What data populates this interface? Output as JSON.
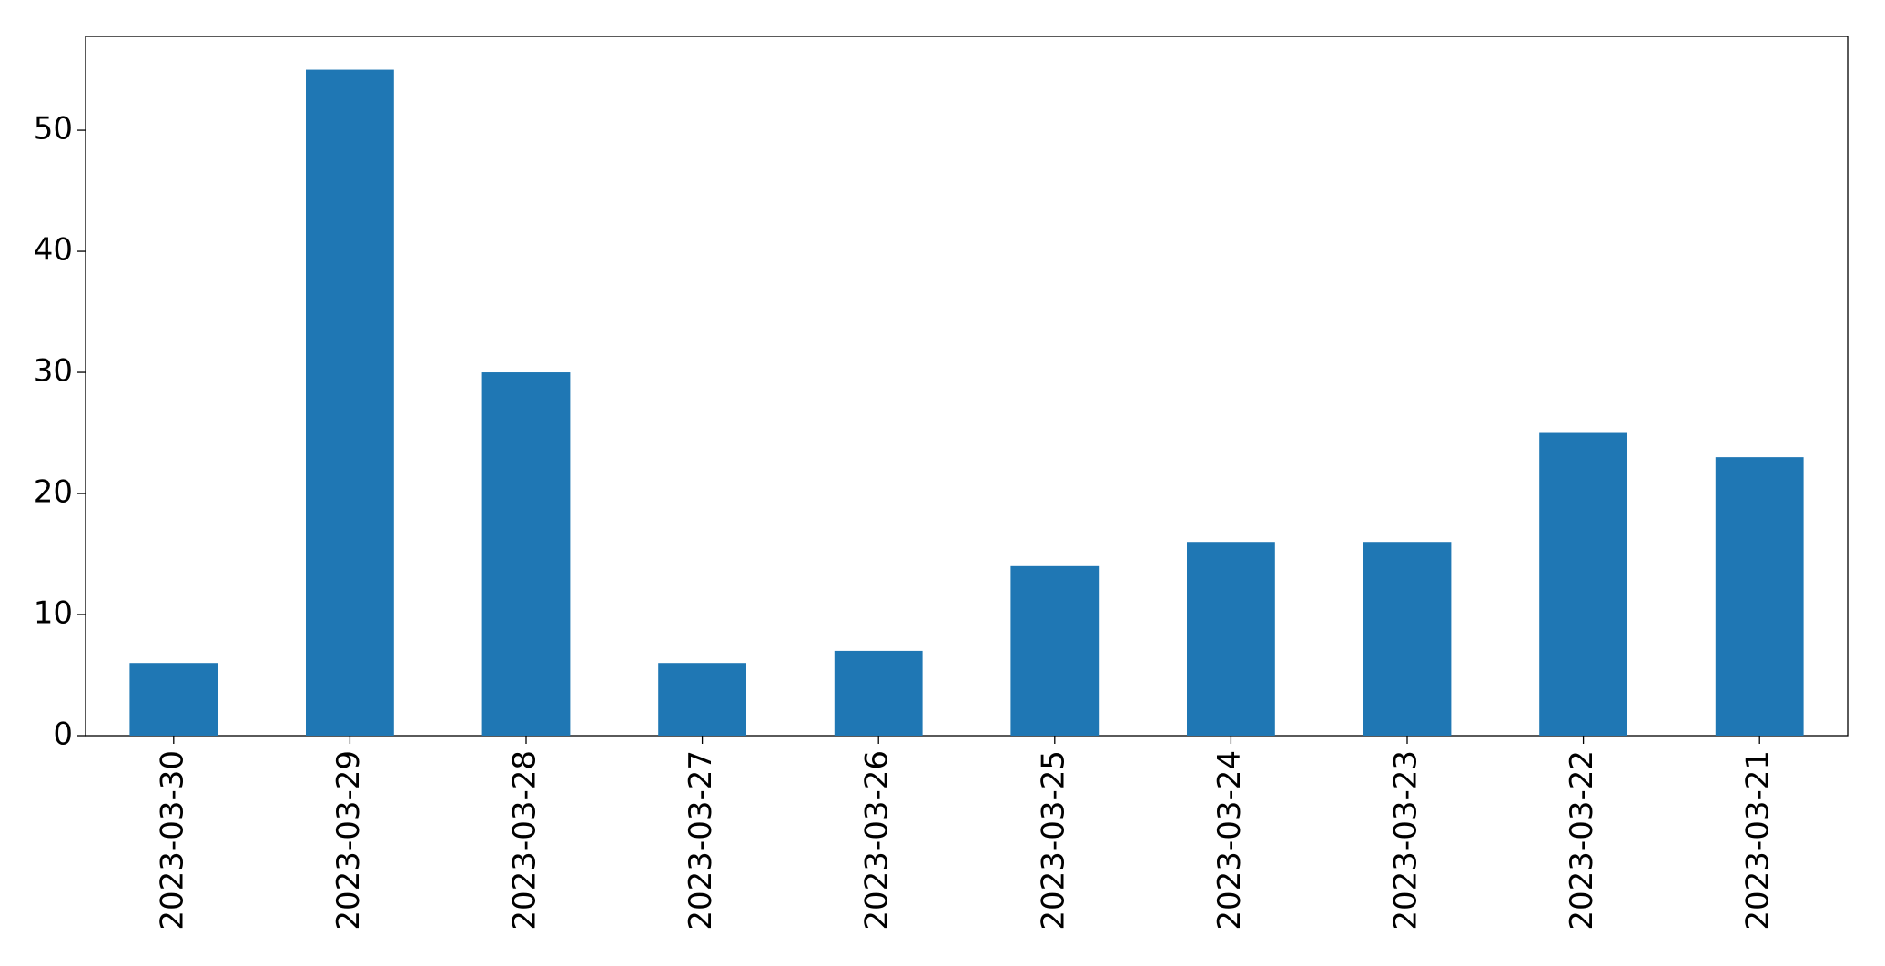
{
  "chart_data": {
    "type": "bar",
    "categories": [
      "2023-03-30",
      "2023-03-29",
      "2023-03-28",
      "2023-03-27",
      "2023-03-26",
      "2023-03-25",
      "2023-03-24",
      "2023-03-23",
      "2023-03-22",
      "2023-03-21"
    ],
    "values": [
      6,
      55,
      30,
      6,
      7,
      14,
      16,
      16,
      25,
      23
    ],
    "color": "#1f77b4",
    "ylim": [
      0,
      57.75
    ],
    "yticks": [
      0,
      10,
      20,
      30,
      40,
      50
    ],
    "grid": false
  }
}
